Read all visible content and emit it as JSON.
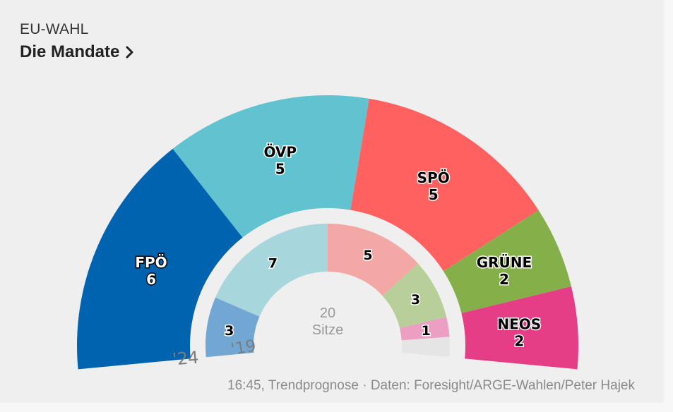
{
  "header": {
    "kicker": "EU-WAHL",
    "title": "Die Mandate"
  },
  "footer": {
    "source": "16:45, Trendprognose · Daten: Foresight/ARGE-Wahlen/Peter Hajek"
  },
  "chart_data": {
    "type": "parliament-semicircle",
    "total_seats": 20,
    "center_value": "20",
    "center_unit": "Sitze",
    "rings": [
      {
        "label": "'24",
        "seats": [
          {
            "party": "FPÖ",
            "value": 6,
            "color": "#0063af",
            "text_color": "#ffffff"
          },
          {
            "party": "ÖVP",
            "value": 5,
            "color": "#61c3cf",
            "text_color": "#000000"
          },
          {
            "party": "SPÖ",
            "value": 5,
            "color": "#ff6161",
            "text_color": "#000000"
          },
          {
            "party": "GRÜNE",
            "value": 2,
            "color": "#85b049",
            "text_color": "#000000"
          },
          {
            "party": "NEOS",
            "value": 2,
            "color": "#e53d86",
            "text_color": "#000000"
          }
        ]
      },
      {
        "label": "'19",
        "seats": [
          {
            "party": "FPÖ",
            "value": 3,
            "color": "#72a7d3"
          },
          {
            "party": "ÖVP",
            "value": 7,
            "color": "#a7d7dc"
          },
          {
            "party": "SPÖ",
            "value": 5,
            "color": "#f3a8a5"
          },
          {
            "party": "GRÜNE",
            "value": 3,
            "color": "#b8cf9a"
          },
          {
            "party": "NEOS",
            "value": 1,
            "color": "#ec9fc3"
          },
          {
            "party": "",
            "value": 1,
            "color": "#e5e5e5"
          }
        ]
      }
    ]
  }
}
